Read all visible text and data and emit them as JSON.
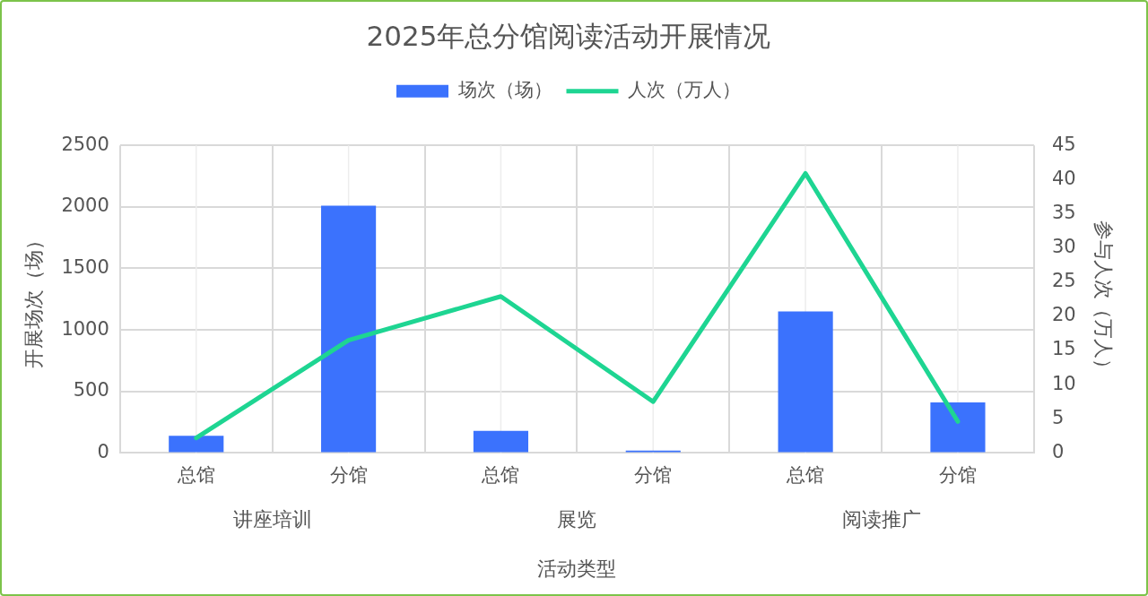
{
  "chart_data": {
    "type": "bar",
    "title": "2025年总分馆阅读活动开展情况",
    "xlabel": "活动类型",
    "ylabel": "开展场次（场）",
    "y2label": "参与人次（万人）",
    "categories": [
      "总馆",
      "分馆",
      "总馆",
      "分馆",
      "总馆",
      "分馆"
    ],
    "annotations": [
      "讲座培训",
      "展览",
      "阅读推广"
    ],
    "series": [
      {
        "name": "场次（场）",
        "color": "#3b72fd",
        "values": [
          140,
          2010,
          180,
          20,
          1150,
          410
        ]
      },
      {
        "name": "人次（万人）",
        "type": "line",
        "axis": "y2",
        "color": "#1ed592",
        "values": [
          2.2,
          16.5,
          22.9,
          7.5,
          40.9,
          4.6
        ]
      }
    ],
    "ylim": [
      0,
      2500
    ],
    "yticks": [
      0,
      500,
      1000,
      1500,
      2000,
      2500
    ],
    "y2lim": [
      0,
      45
    ],
    "y2ticks": [
      0,
      5,
      10,
      15,
      20,
      25,
      30,
      35,
      40,
      45
    ],
    "grid": true,
    "legend": "top",
    "marker": "none",
    "line_style": "solid"
  }
}
